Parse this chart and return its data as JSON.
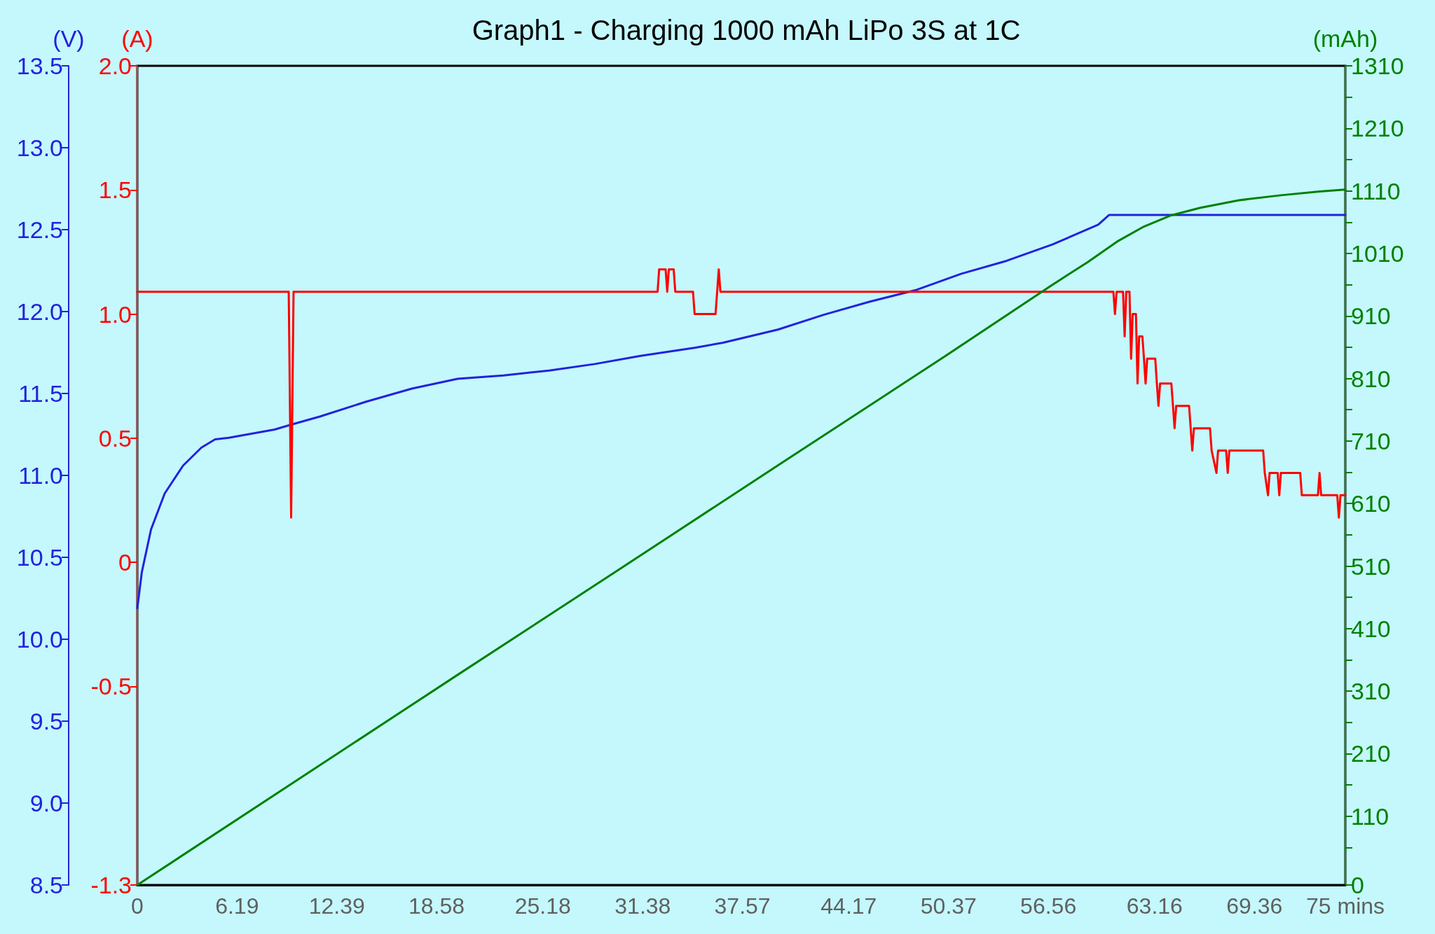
{
  "chart_data": {
    "type": "line",
    "title": "Graph1 - Charging 1000 mAh LiPo 3S at 1C",
    "ylabel": "(V)",
    "y2label": "(A)",
    "y3label": "(mAh)",
    "xlim": [
      0,
      75
    ],
    "xticks": [
      0,
      6.19,
      12.39,
      18.58,
      25.18,
      31.38,
      37.57,
      44.17,
      50.37,
      56.56,
      63.16,
      69.36,
      {
        "value": 75,
        "label": "75 mins"
      }
    ],
    "ylim": [
      8.5,
      13.5
    ],
    "yticks": [
      8.5,
      {
        "value": 9,
        "label": "9.0"
      },
      9.5,
      {
        "value": 10,
        "label": "10.0"
      },
      10.5,
      {
        "value": 11,
        "label": "11.0"
      },
      11.5,
      {
        "value": 12,
        "label": "12.0"
      },
      12.5,
      {
        "value": 13,
        "label": "13.0"
      },
      13.5
    ],
    "y2lim": [
      -1.3,
      2.0
    ],
    "y2ticks": [
      -1.3,
      -0.5,
      0,
      0.5,
      {
        "value": 1,
        "label": "1.0"
      },
      1.5,
      {
        "value": 2,
        "label": "2.0"
      }
    ],
    "y3lim": [
      0,
      1310
    ],
    "y3ticks": [
      0,
      {
        "value": 60,
        "label": null
      },
      110,
      {
        "value": 160,
        "label": null
      },
      210,
      {
        "value": 260,
        "label": null
      },
      310,
      {
        "value": 360,
        "label": null
      },
      410,
      {
        "value": 460,
        "label": null
      },
      510,
      {
        "value": 560,
        "label": null
      },
      610,
      {
        "value": 660,
        "label": null
      },
      710,
      {
        "value": 760,
        "label": null
      },
      810,
      {
        "value": 860,
        "label": null
      },
      910,
      {
        "value": 960,
        "label": null
      },
      1010,
      {
        "value": 1060,
        "label": null
      },
      1110,
      {
        "value": 1160,
        "label": null
      },
      1210,
      {
        "value": 1260,
        "label": null
      },
      1310
    ],
    "grid": false,
    "marker": "none",
    "line_style": "solid",
    "series": [
      {
        "color": "#2222dd",
        "x": [
          0,
          0.28,
          0.85,
          1.7,
          2.84,
          3.98,
          4.83,
          5.68,
          8.52,
          9.55,
          11.36,
          14.2,
          17.05,
          19.89,
          22.73,
          25.57,
          28.41,
          31.25,
          34.66,
          36.36,
          39.77,
          42.61,
          45.45,
          48.3,
          51.14,
          53.98,
          56.82,
          59.66,
          60.34,
          75
        ],
        "values": [
          10.19,
          10.41,
          10.67,
          10.89,
          11.06,
          11.17,
          11.22,
          11.23,
          11.28,
          11.31,
          11.36,
          11.45,
          11.53,
          11.59,
          11.61,
          11.64,
          11.68,
          11.73,
          11.78,
          11.81,
          11.89,
          11.98,
          12.06,
          12.13,
          12.23,
          12.31,
          12.41,
          12.53,
          12.59,
          12.59
        ]
      },
      {
        "color": "#ff0000",
        "axis": "y2",
        "x": [
          0,
          9.4,
          9.55,
          9.7,
          32.3,
          32.4,
          32.8,
          32.9,
          33.0,
          33.3,
          33.4,
          34.5,
          34.6,
          35.9,
          36.0,
          36.1,
          36.2,
          60.6,
          60.7,
          60.8,
          61.2,
          61.3,
          61.4,
          61.6,
          61.7,
          61.8,
          62.0,
          62.1,
          62.2,
          62.4,
          62.5,
          62.6,
          62.7,
          63.2,
          63.3,
          63.4,
          63.5,
          64.2,
          64.3,
          64.4,
          64.5,
          65.3,
          65.4,
          65.5,
          65.6,
          66.6,
          66.7,
          67.0,
          67.1,
          67.6,
          67.7,
          67.8,
          69.9,
          70.0,
          70.2,
          70.3,
          70.8,
          70.9,
          71.0,
          72.2,
          72.3,
          73.3,
          73.4,
          73.5,
          74.5,
          74.6,
          74.7,
          75
        ],
        "values": [
          1.09,
          1.09,
          0.18,
          1.09,
          1.09,
          1.18,
          1.18,
          1.09,
          1.18,
          1.18,
          1.09,
          1.09,
          1.0,
          1.0,
          1.09,
          1.18,
          1.09,
          1.09,
          1.0,
          1.09,
          1.09,
          0.91,
          1.09,
          1.09,
          0.82,
          1.0,
          1.0,
          0.72,
          0.91,
          0.91,
          0.82,
          0.72,
          0.82,
          0.82,
          0.72,
          0.63,
          0.72,
          0.72,
          0.63,
          0.54,
          0.63,
          0.63,
          0.54,
          0.45,
          0.54,
          0.54,
          0.45,
          0.36,
          0.45,
          0.45,
          0.36,
          0.45,
          0.45,
          0.36,
          0.27,
          0.36,
          0.36,
          0.27,
          0.36,
          0.36,
          0.27,
          0.27,
          0.36,
          0.27,
          0.27,
          0.18,
          0.27,
          0.27
        ]
      },
      {
        "color": "#008000",
        "axis": "y3",
        "x": [
          0,
          10,
          20,
          30,
          40,
          50,
          56.7,
          59,
          60.9,
          62.5,
          64.2,
          66,
          68.4,
          71,
          73.4,
          75
        ],
        "values": [
          0,
          169,
          338,
          506,
          675,
          843,
          958,
          996,
          1030,
          1053,
          1071,
          1083,
          1095,
          1103,
          1109,
          1112
        ]
      }
    ]
  }
}
